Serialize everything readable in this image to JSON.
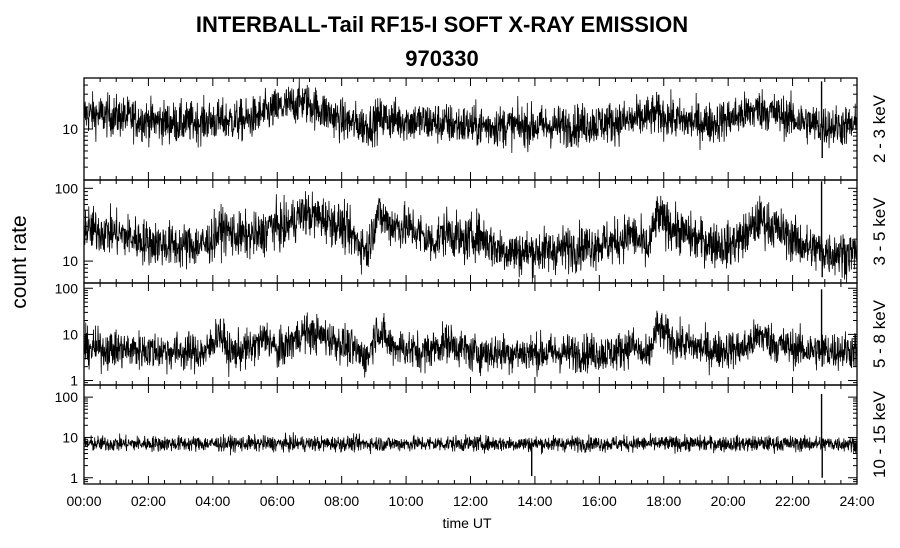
{
  "chart_data": {
    "type": "line",
    "title": "INTERBALL-Tail RF15-I SOFT X-RAY EMISSION",
    "subtitle": "970330",
    "xlabel": "time UT",
    "ylabel": "count rate",
    "x_ticks": [
      "00:00",
      "02:00",
      "04:00",
      "06:00",
      "08:00",
      "10:00",
      "12:00",
      "14:00",
      "16:00",
      "18:00",
      "20:00",
      "22:00",
      "24:00"
    ],
    "xlim_hours": [
      0,
      24
    ],
    "y_scale": "log",
    "panels": [
      {
        "name": "2 - 3 keV",
        "ylim": [
          2,
          50
        ],
        "y_tick_labels": [
          "10"
        ],
        "y_tick_values": [
          10
        ],
        "noise": 0.22,
        "profile": [
          [
            0,
            16
          ],
          [
            1,
            15
          ],
          [
            2,
            13
          ],
          [
            3,
            12
          ],
          [
            4,
            13
          ],
          [
            5,
            13
          ],
          [
            6,
            19
          ],
          [
            6.8,
            24
          ],
          [
            7.5,
            17
          ],
          [
            8,
            13
          ],
          [
            8.8,
            11
          ],
          [
            9.2,
            14
          ],
          [
            10,
            13
          ],
          [
            11,
            12
          ],
          [
            12,
            11
          ],
          [
            13,
            11
          ],
          [
            14,
            11
          ],
          [
            15,
            11
          ],
          [
            16,
            12
          ],
          [
            17,
            13
          ],
          [
            17.8,
            16
          ],
          [
            18.5,
            13
          ],
          [
            19.5,
            12
          ],
          [
            20.5,
            16
          ],
          [
            21,
            19
          ],
          [
            21.5,
            16
          ],
          [
            22.5,
            12
          ],
          [
            23,
            11
          ],
          [
            24,
            11
          ]
        ],
        "spikes": [
          [
            22.9,
            45
          ],
          [
            22.92,
            4
          ]
        ]
      },
      {
        "name": "3 - 5 keV",
        "ylim": [
          5,
          130
        ],
        "y_tick_labels": [
          "10",
          "100"
        ],
        "y_tick_values": [
          10,
          100
        ],
        "noise": 0.24,
        "profile": [
          [
            0,
            28
          ],
          [
            1,
            24
          ],
          [
            2,
            18
          ],
          [
            3,
            16
          ],
          [
            3.8,
            17
          ],
          [
            4.3,
            28
          ],
          [
            4.8,
            22
          ],
          [
            5.5,
            22
          ],
          [
            5.8,
            32
          ],
          [
            6.2,
            28
          ],
          [
            6.8,
            46
          ],
          [
            7.5,
            38
          ],
          [
            8,
            30
          ],
          [
            8.8,
            14
          ],
          [
            9.1,
            45
          ],
          [
            9.5,
            32
          ],
          [
            10.2,
            28
          ],
          [
            10.8,
            18
          ],
          [
            11.3,
            26
          ],
          [
            11.8,
            18
          ],
          [
            12.2,
            24
          ],
          [
            12.8,
            15
          ],
          [
            13.5,
            13
          ],
          [
            14.5,
            14
          ],
          [
            15.5,
            16
          ],
          [
            16.5,
            18
          ],
          [
            17,
            24
          ],
          [
            17.5,
            14
          ],
          [
            17.8,
            42
          ],
          [
            18.3,
            28
          ],
          [
            19,
            20
          ],
          [
            20,
            16
          ],
          [
            20.5,
            22
          ],
          [
            21,
            38
          ],
          [
            21.6,
            26
          ],
          [
            22.5,
            15
          ],
          [
            23.2,
            13
          ],
          [
            24,
            13
          ]
        ],
        "spikes": [
          [
            22.9,
            125
          ],
          [
            22.92,
            6
          ]
        ]
      },
      {
        "name": "5 - 8 keV",
        "ylim": [
          0.8,
          130
        ],
        "y_tick_labels": [
          "1",
          "10",
          "100"
        ],
        "y_tick_values": [
          1,
          10,
          100
        ],
        "noise": 0.32,
        "profile": [
          [
            0,
            5
          ],
          [
            2,
            4.5
          ],
          [
            3.8,
            4
          ],
          [
            4.2,
            12
          ],
          [
            4.5,
            4
          ],
          [
            5.2,
            5
          ],
          [
            5.7,
            9
          ],
          [
            6,
            4
          ],
          [
            6.8,
            11
          ],
          [
            7.5,
            9
          ],
          [
            8.3,
            5
          ],
          [
            8.8,
            3
          ],
          [
            9.1,
            14
          ],
          [
            9.5,
            6
          ],
          [
            10.5,
            4
          ],
          [
            11.3,
            7
          ],
          [
            12,
            4
          ],
          [
            13,
            4
          ],
          [
            15,
            4
          ],
          [
            16.5,
            4
          ],
          [
            17,
            6
          ],
          [
            17.5,
            3
          ],
          [
            17.8,
            14
          ],
          [
            18.3,
            7
          ],
          [
            19.5,
            4.5
          ],
          [
            20.5,
            5
          ],
          [
            21,
            10
          ],
          [
            21.5,
            6
          ],
          [
            22.5,
            4.5
          ],
          [
            24,
            4.5
          ]
        ],
        "spikes": [
          [
            22.9,
            95
          ],
          [
            22.92,
            2
          ]
        ]
      },
      {
        "name": "10 - 15 keV",
        "ylim": [
          0.7,
          200
        ],
        "y_tick_labels": [
          "1",
          "10",
          "100"
        ],
        "y_tick_values": [
          1,
          10,
          100
        ],
        "noise": 0.15,
        "profile": [
          [
            0,
            7
          ],
          [
            12,
            7
          ],
          [
            24,
            7
          ]
        ],
        "spikes": [
          [
            22.9,
            120
          ],
          [
            22.92,
            1
          ],
          [
            13.9,
            1.1
          ]
        ]
      }
    ]
  }
}
